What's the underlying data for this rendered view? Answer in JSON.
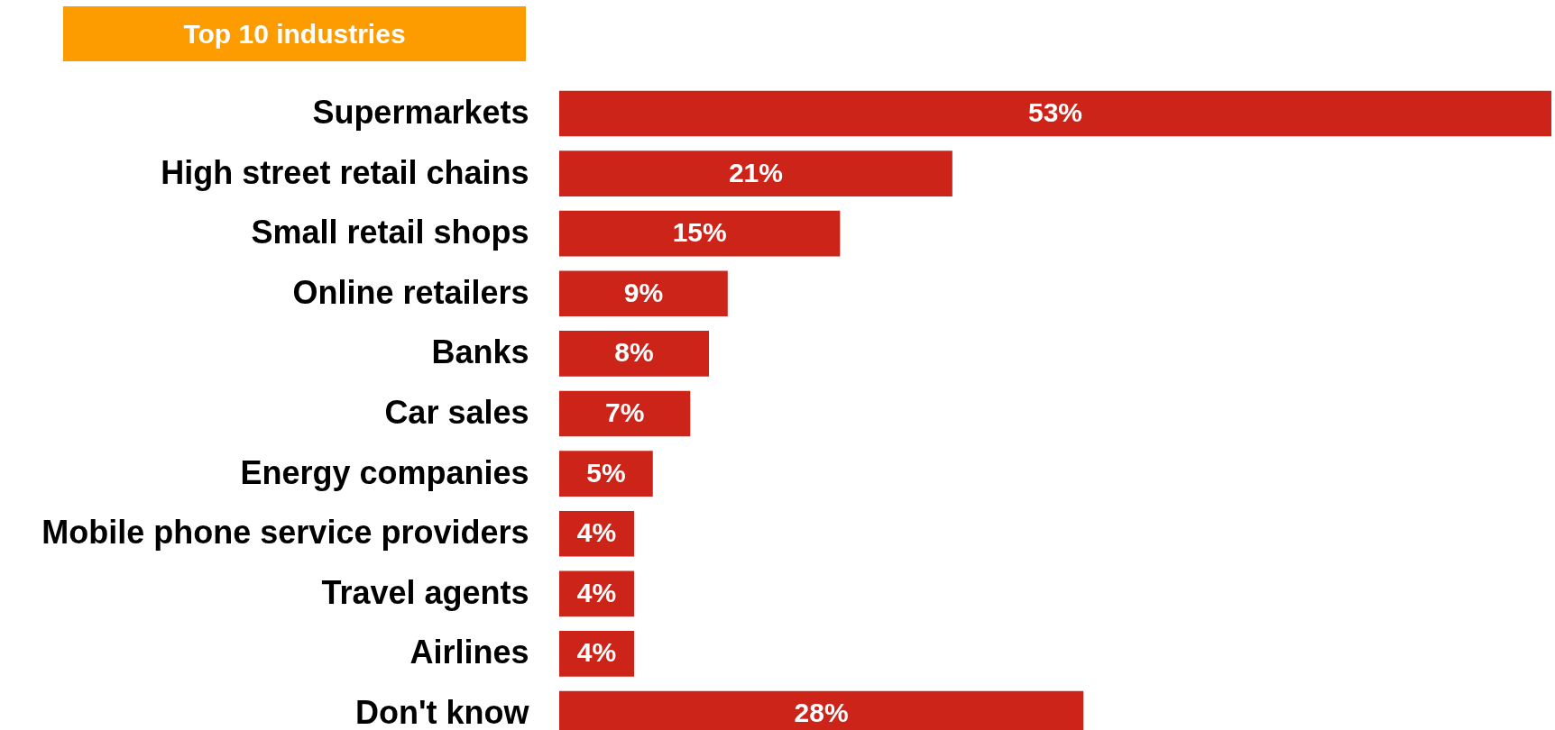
{
  "chart_data": {
    "type": "bar",
    "orientation": "horizontal",
    "title": "Top 10 industries",
    "categories": [
      "Supermarkets",
      "High street retail chains",
      "Small retail shops",
      "Online retailers",
      "Banks",
      "Car sales",
      "Energy companies",
      "Mobile phone service providers",
      "Travel agents",
      "Airlines",
      "Don't know"
    ],
    "values": [
      53,
      21,
      15,
      9,
      8,
      7,
      5,
      4,
      4,
      4,
      28
    ],
    "value_labels": [
      "53%",
      "21%",
      "15%",
      "9%",
      "8%",
      "7%",
      "5%",
      "4%",
      "4%",
      "4%",
      "28%"
    ],
    "color": "#cc2418"
  }
}
